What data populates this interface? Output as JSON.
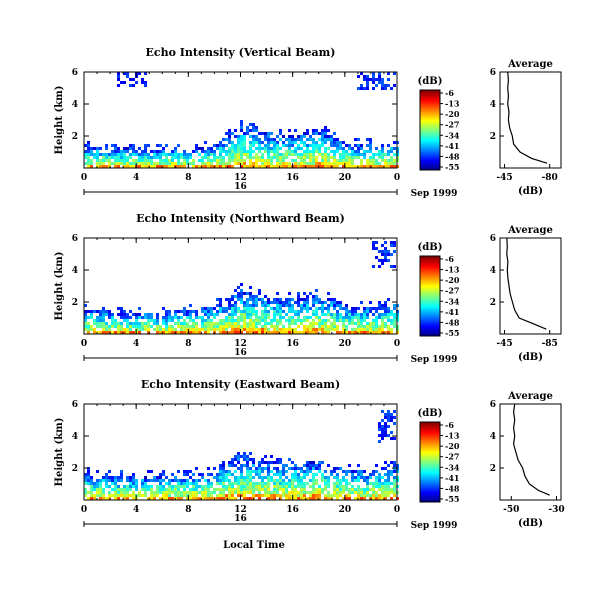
{
  "chart_data": [
    {
      "type": "heatmap",
      "title": "Echo Intensity (Vertical Beam)",
      "ylabel": "Height (km)",
      "xlabel": "",
      "x_ticks": [
        "0",
        "4",
        "8",
        "12",
        "16",
        "20",
        "0"
      ],
      "y_ticks": [
        "6",
        "4",
        "2"
      ],
      "xlim": [
        0,
        24
      ],
      "ylim": [
        0,
        6
      ],
      "day_label": "16",
      "month_label": "Sep 1999",
      "colorbar": {
        "label": "(dB)",
        "ticks": [
          "-6",
          "-13",
          "-20",
          "-27",
          "-34",
          "-41",
          "-48",
          "-55"
        ]
      },
      "echo_top_km": [
        [
          0,
          1.3
        ],
        [
          2,
          1.3
        ],
        [
          4,
          1.2
        ],
        [
          6,
          1.2
        ],
        [
          8,
          1.1
        ],
        [
          10,
          1.4
        ],
        [
          11,
          2.0
        ],
        [
          12,
          2.6
        ],
        [
          13,
          2.4
        ],
        [
          14,
          2.2
        ],
        [
          16,
          2.0
        ],
        [
          18,
          2.4
        ],
        [
          20,
          1.6
        ],
        [
          22,
          1.5
        ],
        [
          24,
          1.6
        ]
      ],
      "upper_patches": [
        {
          "hours": [
            2.5,
            5
          ],
          "km": [
            5.0,
            6.0
          ]
        },
        {
          "hours": [
            21,
            24
          ],
          "km": [
            4.8,
            6.0
          ]
        }
      ],
      "average": {
        "title": "Average",
        "xlabel": "(dB)",
        "x_ticks": [
          "-45",
          "-80"
        ],
        "y_ticks": [
          "6",
          "4",
          "2"
        ],
        "profile_km": [
          0.3,
          0.6,
          1.0,
          1.5,
          2.0,
          2.5,
          3.0,
          3.5,
          4.0,
          4.5,
          5.0,
          5.5,
          6.0
        ],
        "profile_db": [
          -78,
          -66,
          -57,
          -52,
          -51,
          -49,
          -48,
          -48.5,
          -47.5,
          -48,
          -47.5,
          -48,
          -47.5
        ]
      }
    },
    {
      "type": "heatmap",
      "title": "Echo Intensity (Northward Beam)",
      "ylabel": "Height (km)",
      "xlabel": "",
      "x_ticks": [
        "0",
        "4",
        "8",
        "12",
        "16",
        "20",
        "0"
      ],
      "y_ticks": [
        "6",
        "4",
        "2"
      ],
      "xlim": [
        0,
        24
      ],
      "ylim": [
        0,
        6
      ],
      "day_label": "16",
      "month_label": "Sep 1999",
      "colorbar": {
        "label": "(dB)",
        "ticks": [
          "-6",
          "-13",
          "-20",
          "-27",
          "-34",
          "-41",
          "-48",
          "-55"
        ]
      },
      "echo_top_km": [
        [
          0,
          1.5
        ],
        [
          2,
          1.4
        ],
        [
          4,
          1.3
        ],
        [
          6,
          1.4
        ],
        [
          8,
          1.5
        ],
        [
          10,
          1.7
        ],
        [
          11,
          2.2
        ],
        [
          12,
          2.8
        ],
        [
          13,
          2.5
        ],
        [
          14,
          2.3
        ],
        [
          16,
          2.2
        ],
        [
          18,
          2.5
        ],
        [
          20,
          1.8
        ],
        [
          22,
          1.7
        ],
        [
          24,
          1.9
        ]
      ],
      "upper_patches": [
        {
          "hours": [
            22,
            24
          ],
          "km": [
            4.2,
            5.8
          ]
        }
      ],
      "average": {
        "title": "Average",
        "xlabel": "(dB)",
        "x_ticks": [
          "-45",
          "-85"
        ],
        "y_ticks": [
          "6",
          "4",
          "2"
        ],
        "profile_km": [
          0.3,
          0.6,
          1.0,
          1.5,
          2.0,
          2.5,
          3.0,
          3.5,
          4.0,
          4.5,
          5.0,
          5.5,
          6.0
        ],
        "profile_db": [
          -82,
          -72,
          -58,
          -54,
          -52,
          -50,
          -49,
          -48,
          -47.5,
          -48,
          -47,
          -47.5,
          -47
        ]
      }
    },
    {
      "type": "heatmap",
      "title": "Echo Intensity (Eastward Beam)",
      "ylabel": "Height (km)",
      "xlabel": "Local Time",
      "x_ticks": [
        "0",
        "4",
        "8",
        "12",
        "16",
        "20",
        "0"
      ],
      "y_ticks": [
        "6",
        "4",
        "2"
      ],
      "xlim": [
        0,
        24
      ],
      "ylim": [
        0,
        6
      ],
      "day_label": "16",
      "month_label": "Sep 1999",
      "colorbar": {
        "label": "(dB)",
        "ticks": [
          "-6",
          "-13",
          "-20",
          "-27",
          "-34",
          "-41",
          "-48",
          "-55"
        ]
      },
      "echo_top_km": [
        [
          0,
          1.7
        ],
        [
          2,
          1.5
        ],
        [
          4,
          1.4
        ],
        [
          6,
          1.5
        ],
        [
          8,
          1.6
        ],
        [
          10,
          1.8
        ],
        [
          11,
          2.4
        ],
        [
          12,
          2.8
        ],
        [
          13,
          2.6
        ],
        [
          14,
          2.4
        ],
        [
          16,
          2.3
        ],
        [
          18,
          2.4
        ],
        [
          20,
          1.9
        ],
        [
          22,
          1.8
        ],
        [
          24,
          2.2
        ]
      ],
      "upper_patches": [
        {
          "hours": [
            22.5,
            24
          ],
          "km": [
            3.5,
            5.7
          ]
        }
      ],
      "average": {
        "title": "Average",
        "xlabel": "(dB)",
        "x_ticks": [
          "-50",
          "-30"
        ],
        "y_ticks": [
          "6",
          "4",
          "2"
        ],
        "profile_km": [
          0.3,
          0.6,
          1.0,
          1.5,
          2.0,
          2.5,
          3.0,
          3.5,
          4.0,
          4.5,
          5.0,
          5.5,
          6.0
        ],
        "profile_db": [
          -33,
          -38,
          -42,
          -44,
          -45,
          -47,
          -48,
          -49,
          -48.5,
          -49,
          -48.5,
          -49,
          -48.5
        ]
      }
    }
  ]
}
